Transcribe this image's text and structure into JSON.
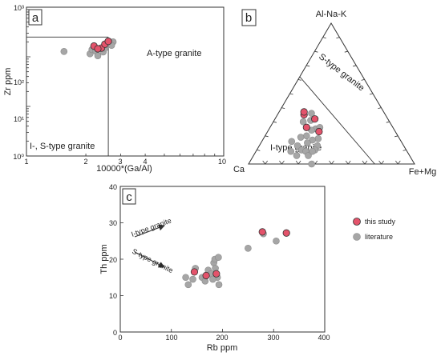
{
  "colors": {
    "this_study": "#e4536b",
    "literature": "#a6a6a6"
  },
  "legend": {
    "this_study": "this study",
    "literature": "literature"
  },
  "panel_a": {
    "letter": "a",
    "xlabel": "10000*(Ga/Al)",
    "ylabel": "Zr ppm",
    "x_ticks": [
      "1",
      "2",
      "3",
      "4",
      "10"
    ],
    "y_ticks": [
      "10⁰",
      "10¹",
      "10²",
      "10³"
    ],
    "region_a": "A-type granite",
    "region_is": "I-, S-type granite"
  },
  "panel_b": {
    "letter": "b",
    "apex_top": "Al-Na-K",
    "apex_left": "Ca",
    "apex_right": "Fe+Mg",
    "region_s": "S-type granite",
    "region_i": "I-type granite"
  },
  "panel_c": {
    "letter": "c",
    "xlabel": "Rb ppm",
    "ylabel": "Th ppm",
    "x_ticks": [
      "0",
      "100",
      "200",
      "300",
      "400"
    ],
    "y_ticks": [
      "0",
      "10",
      "20",
      "30",
      "40"
    ],
    "arrow_i": "I-type granite",
    "arrow_s": "S-type granite"
  },
  "chart_data": [
    {
      "type": "scatter",
      "xscale": "log",
      "yscale": "log",
      "xlim": [
        1,
        10
      ],
      "ylim": [
        1,
        1000
      ],
      "boundary": {
        "x": 2.6,
        "y": 250
      },
      "series": [
        {
          "name": "this study",
          "points": [
            [
              2.2,
              165
            ],
            [
              2.4,
              150
            ],
            [
              2.5,
              180
            ],
            [
              2.6,
              205
            ],
            [
              2.3,
              145
            ]
          ]
        },
        {
          "name": "literature",
          "points": [
            [
              1.55,
              128
            ],
            [
              2.1,
              115
            ],
            [
              2.15,
              140
            ],
            [
              2.25,
              130
            ],
            [
              2.3,
              105
            ],
            [
              2.45,
              125
            ],
            [
              2.5,
              150
            ],
            [
              2.55,
              175
            ],
            [
              2.65,
              190
            ],
            [
              2.75,
              200
            ],
            [
              2.7,
              170
            ],
            [
              2.6,
              210
            ]
          ]
        }
      ]
    },
    {
      "type": "scatter",
      "ternary": true,
      "series": [
        {
          "name": "this study",
          "points": [
            [
              0.22,
              0.52
            ],
            [
              0.16,
              0.49
            ],
            [
              0.15,
              0.48
            ],
            [
              0.24,
              0.44
            ],
            [
              0.31,
              0.46
            ]
          ]
        },
        {
          "name": "literature",
          "points": [
            [
              0.18,
              0.52
            ],
            [
              0.22,
              0.47
            ],
            [
              0.28,
              0.47
            ],
            [
              0.33,
              0.49
            ],
            [
              0.35,
              0.52
            ],
            [
              0.25,
              0.55
            ],
            [
              0.3,
              0.53
            ],
            [
              0.2,
              0.44
            ],
            [
              0.26,
              0.5
            ],
            [
              0.3,
              0.44
            ],
            [
              0.22,
              0.59
            ],
            [
              0.28,
              0.57
            ],
            [
              0.35,
              0.55
            ],
            [
              0.18,
              0.66
            ],
            [
              0.23,
              0.64
            ],
            [
              0.27,
              0.63
            ],
            [
              0.3,
              0.61
            ],
            [
              0.33,
              0.61
            ],
            [
              0.26,
              0.68
            ],
            [
              0.21,
              0.7
            ],
            [
              0.38,
              0.62
            ],
            [
              0.34,
              0.57
            ]
          ]
        }
      ]
    },
    {
      "type": "scatter",
      "xlim": [
        0,
        400
      ],
      "ylim": [
        0,
        40
      ],
      "series": [
        {
          "name": "this study",
          "points": [
            [
              145,
              16.5
            ],
            [
              168,
              15.5
            ],
            [
              188,
              16
            ],
            [
              278,
              27.5
            ],
            [
              325,
              27.2
            ]
          ]
        },
        {
          "name": "literature",
          "points": [
            [
              128,
              15
            ],
            [
              133,
              13
            ],
            [
              142,
              14.5
            ],
            [
              147,
              17.5
            ],
            [
              160,
              15
            ],
            [
              166,
              14
            ],
            [
              172,
              17
            ],
            [
              178,
              16
            ],
            [
              183,
              19
            ],
            [
              186,
              17.5
            ],
            [
              190,
              15
            ],
            [
              193,
              13
            ],
            [
              185,
              20
            ],
            [
              192,
              20.5
            ],
            [
              181,
              14.5
            ],
            [
              250,
              23
            ],
            [
              280,
              27
            ],
            [
              305,
              25
            ]
          ]
        }
      ]
    }
  ]
}
